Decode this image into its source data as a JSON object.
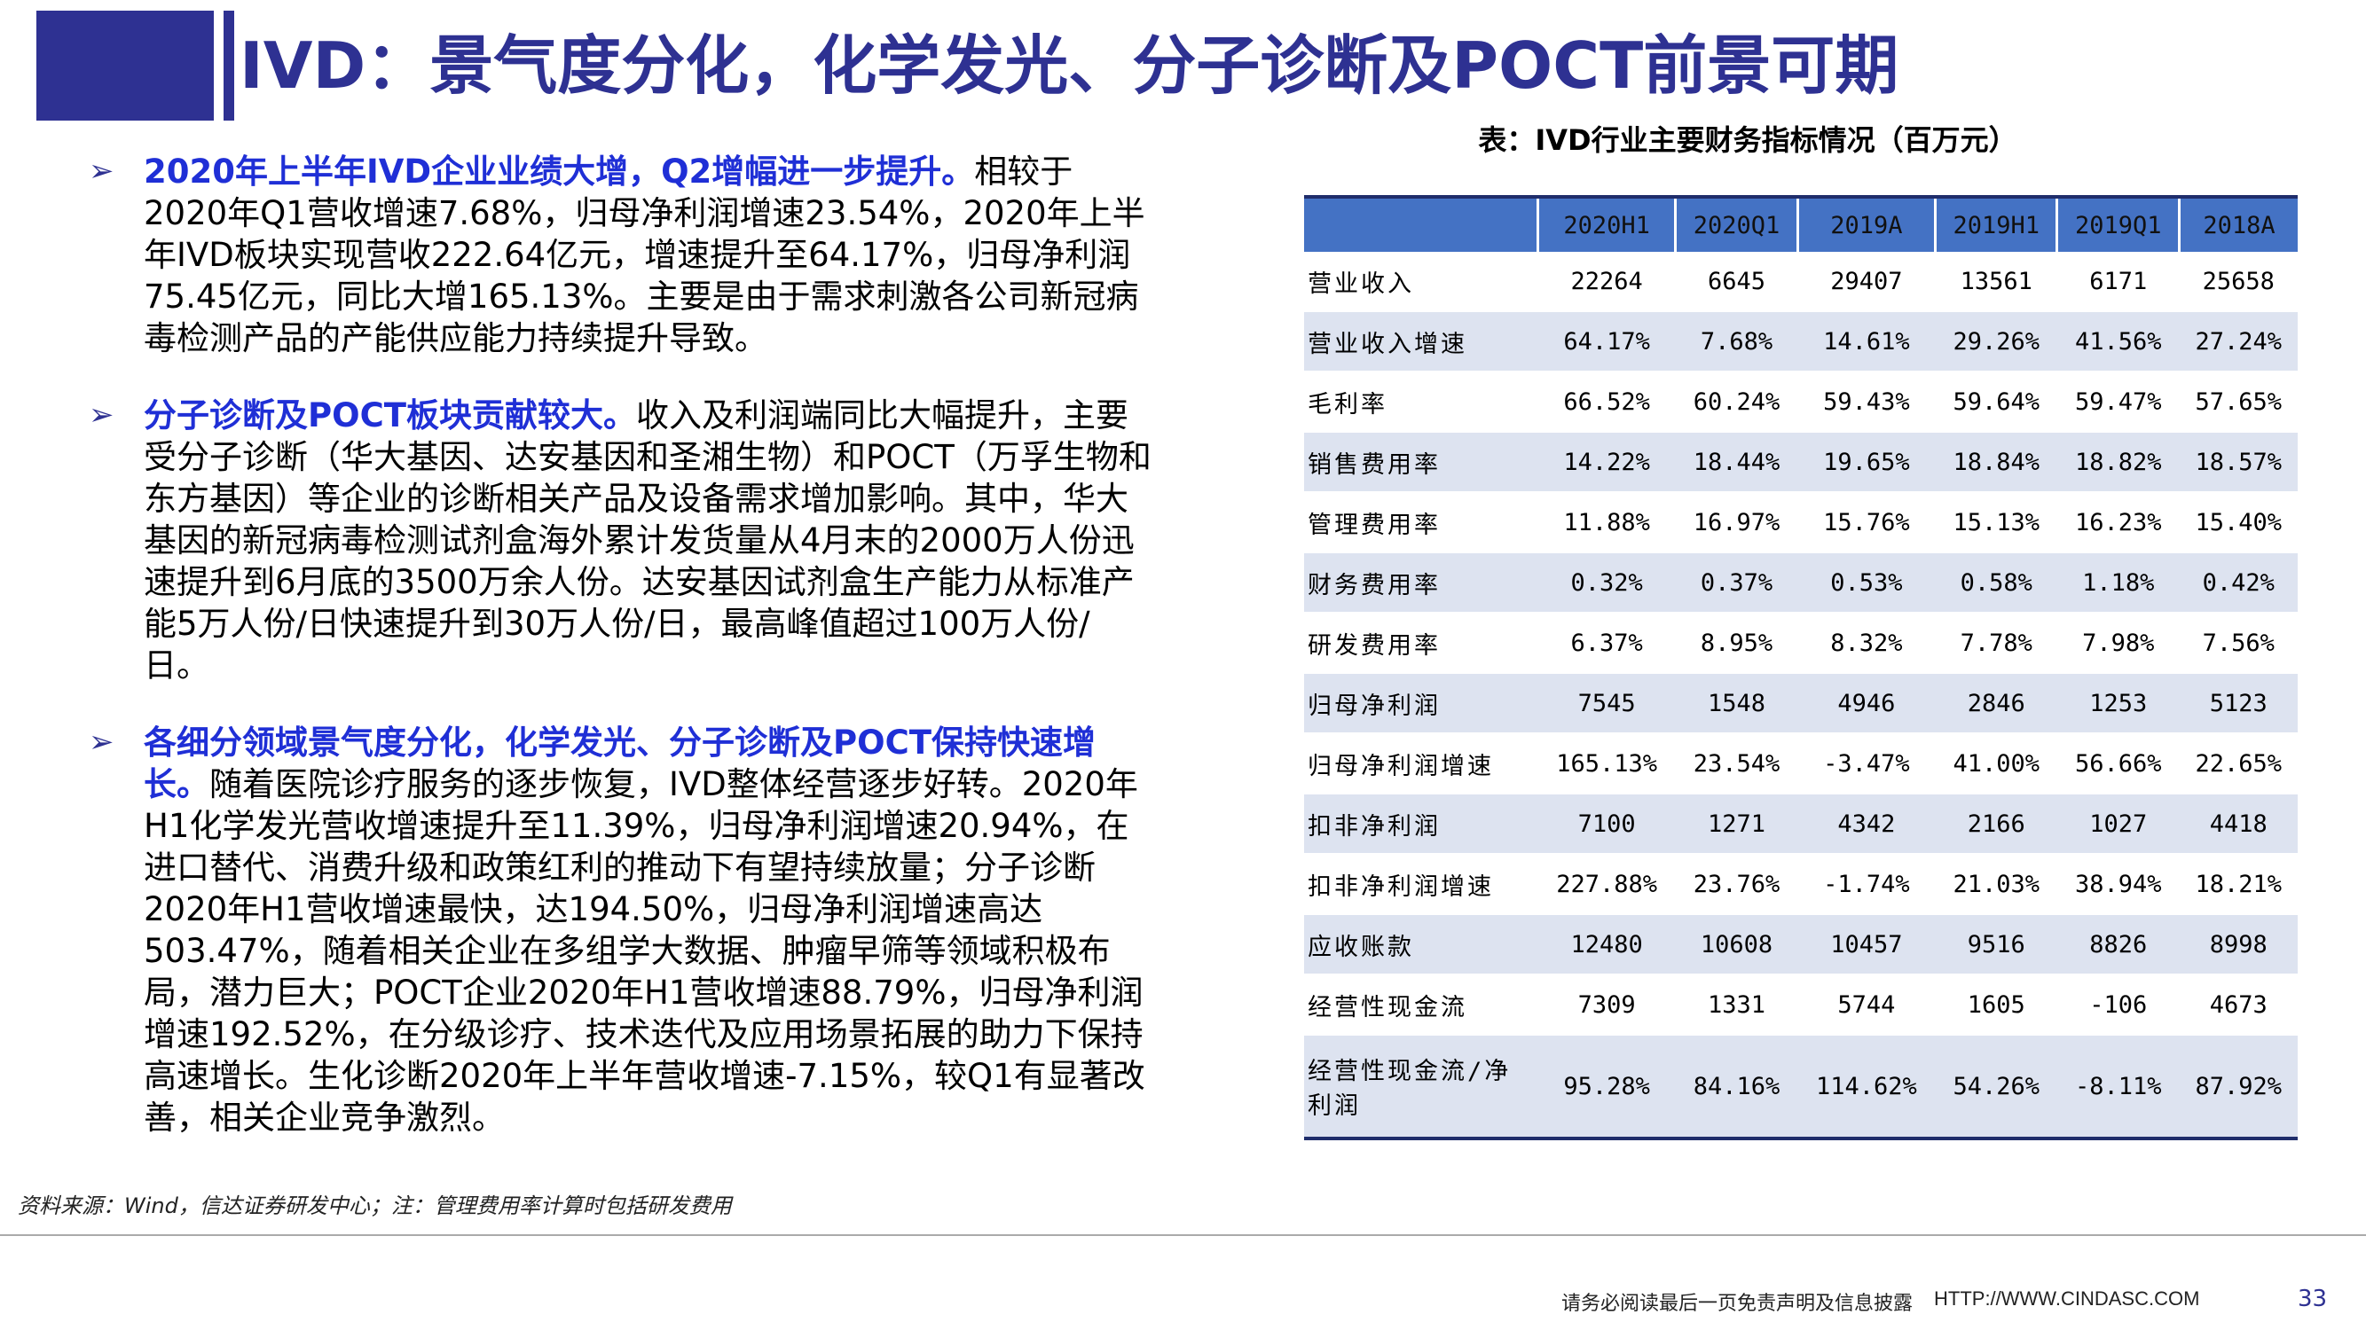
{
  "header": {
    "title": "IVD：景气度分化，化学发光、分子诊断及POCT前景可期"
  },
  "bullets": [
    {
      "lead": "2020年上半年IVD企业业绩大增，Q2增幅进一步提升。",
      "body": "相较于2020年Q1营收增速7.68%，归母净利润增速23.54%，2020年上半年IVD板块实现营收222.64亿元，增速提升至64.17%，归母净利润75.45亿元，同比大增165.13%。主要是由于需求刺激各公司新冠病毒检测产品的产能供应能力持续提升导致。"
    },
    {
      "lead": "分子诊断及POCT板块贡献较大。",
      "body": "收入及利润端同比大幅提升，主要受分子诊断（华大基因、达安基因和圣湘生物）和POCT（万孚生物和东方基因）等企业的诊断相关产品及设备需求增加影响。其中，华大基因的新冠病毒检测试剂盒海外累计发货量从4月末的2000万人份迅速提升到6月底的3500万余人份。达安基因试剂盒生产能力从标准产能5万人份/日快速提升到30万人份/日，最高峰值超过100万人份/日。"
    },
    {
      "lead": "各细分领域景气度分化，化学发光、分子诊断及POCT保持快速增长。",
      "body": "随着医院诊疗服务的逐步恢复，IVD整体经营逐步好转。2020年H1化学发光营收增速提升至11.39%，归母净利润增速20.94%，在进口替代、消费升级和政策红利的推动下有望持续放量；分子诊断2020年H1营收增速最快，达194.50%，归母净利润增速高达503.47%，随着相关企业在多组学大数据、肿瘤早筛等领域积极布局，潜力巨大；POCT企业2020年H1营收增速88.79%，归母净利润增速192.52%，在分级诊疗、技术迭代及应用场景拓展的助力下保持高速增长。生化诊断2020年上半年营收增速-7.15%，较Q1有显著改善，相关企业竞争激烈。"
    }
  ],
  "table": {
    "caption": "表：IVD行业主要财务指标情况（百万元）",
    "columns": [
      "",
      "2020H1",
      "2020Q1",
      "2019A",
      "2019H1",
      "2019Q1",
      "2018A"
    ],
    "rows": [
      {
        "label": "营业收入",
        "values": [
          "22264",
          "6645",
          "29407",
          "13561",
          "6171",
          "25658"
        ]
      },
      {
        "label": "营业收入增速",
        "values": [
          "64.17%",
          "7.68%",
          "14.61%",
          "29.26%",
          "41.56%",
          "27.24%"
        ]
      },
      {
        "label": "毛利率",
        "values": [
          "66.52%",
          "60.24%",
          "59.43%",
          "59.64%",
          "59.47%",
          "57.65%"
        ]
      },
      {
        "label": "销售费用率",
        "values": [
          "14.22%",
          "18.44%",
          "19.65%",
          "18.84%",
          "18.82%",
          "18.57%"
        ]
      },
      {
        "label": "管理费用率",
        "values": [
          "11.88%",
          "16.97%",
          "15.76%",
          "15.13%",
          "16.23%",
          "15.40%"
        ]
      },
      {
        "label": "财务费用率",
        "values": [
          "0.32%",
          "0.37%",
          "0.53%",
          "0.58%",
          "1.18%",
          "0.42%"
        ]
      },
      {
        "label": "研发费用率",
        "values": [
          "6.37%",
          "8.95%",
          "8.32%",
          "7.78%",
          "7.98%",
          "7.56%"
        ]
      },
      {
        "label": "归母净利润",
        "values": [
          "7545",
          "1548",
          "4946",
          "2846",
          "1253",
          "5123"
        ]
      },
      {
        "label": "归母净利润增速",
        "values": [
          "165.13%",
          "23.54%",
          "-3.47%",
          "41.00%",
          "56.66%",
          "22.65%"
        ]
      },
      {
        "label": "扣非净利润",
        "values": [
          "7100",
          "1271",
          "4342",
          "2166",
          "1027",
          "4418"
        ]
      },
      {
        "label": "扣非净利润增速",
        "values": [
          "227.88%",
          "23.76%",
          "-1.74%",
          "21.03%",
          "38.94%",
          "18.21%"
        ]
      },
      {
        "label": "应收账款",
        "values": [
          "12480",
          "10608",
          "10457",
          "9516",
          "8826",
          "8998"
        ]
      },
      {
        "label": "经营性现金流",
        "values": [
          "7309",
          "1331",
          "5744",
          "1605",
          "-106",
          "4673"
        ]
      },
      {
        "label": "经营性现金流/净利润",
        "values": [
          "95.28%",
          "84.16%",
          "114.62%",
          "54.26%",
          "-8.11%",
          "87.92%"
        ]
      }
    ]
  },
  "footer": {
    "source": "资料来源：Wind，信达证券研发中心；注：管理费用率计算时包括研发费用",
    "disclaimer": "请务必阅读最后一页免责声明及信息披露",
    "website": "HTTP://WWW.CINDASC.COM",
    "page_number": "33"
  }
}
